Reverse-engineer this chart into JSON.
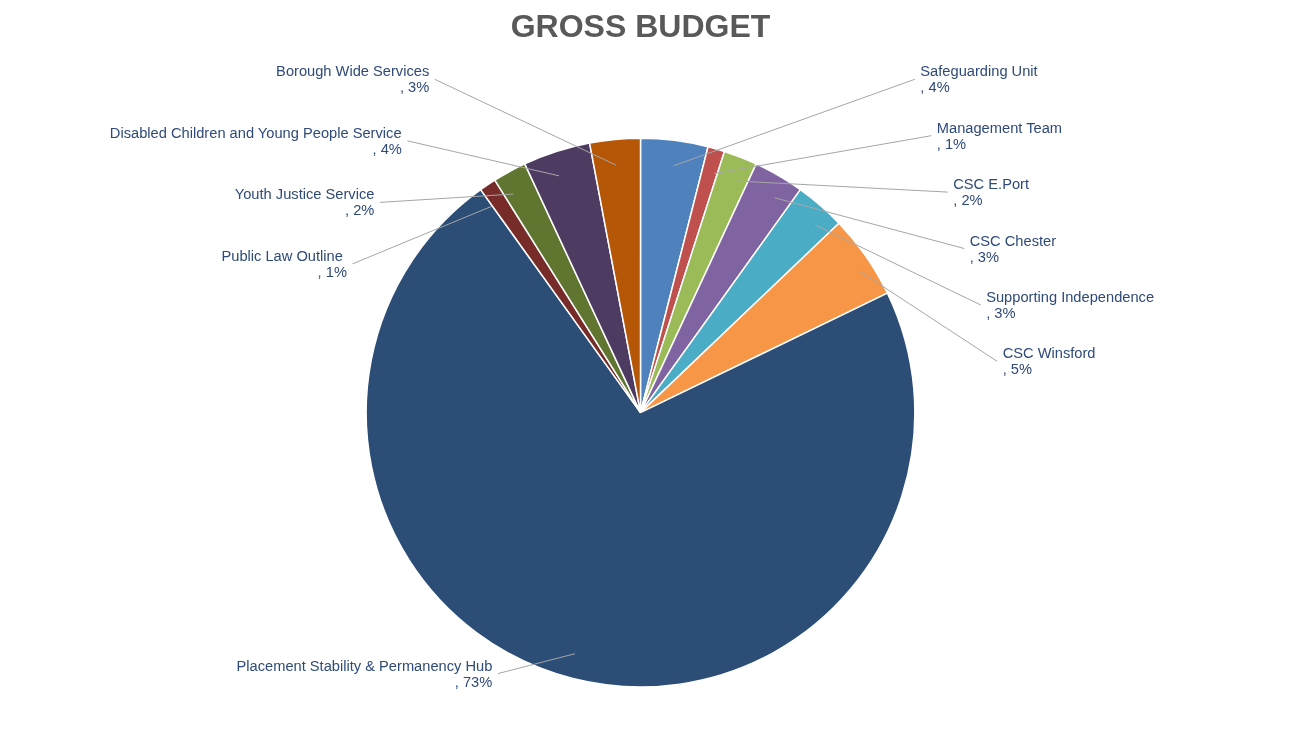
{
  "chart_data": {
    "type": "pie",
    "title": "GROSS BUDGET",
    "categories": [
      "Safeguarding Unit ",
      "Management Team ",
      "CSC E.Port ",
      "CSC Chester ",
      "Supporting Independence",
      "CSC Winsford ",
      "Placement Stability & Permanency Hub",
      "Public Law Outline ",
      "Youth Justice Service",
      "Disabled Children and Young People Service",
      "Borough Wide Services"
    ],
    "values": [
      4,
      1,
      2,
      3,
      3,
      5,
      73,
      1,
      2,
      4,
      3
    ],
    "colors": [
      "#4f81bd",
      "#c0504d",
      "#9bbb59",
      "#8064a2",
      "#4bacc6",
      "#f79646",
      "#2c4d75",
      "#772c2a",
      "#5f7530",
      "#4d3b62",
      "#b65708"
    ],
    "value_labels": [
      ", 4%",
      ", 1%",
      ", 2%",
      ", 3%",
      ", 3%",
      ", 5%",
      ", 73%",
      ", 1%",
      ", 2%",
      ", 4%",
      ", 3%"
    ]
  }
}
